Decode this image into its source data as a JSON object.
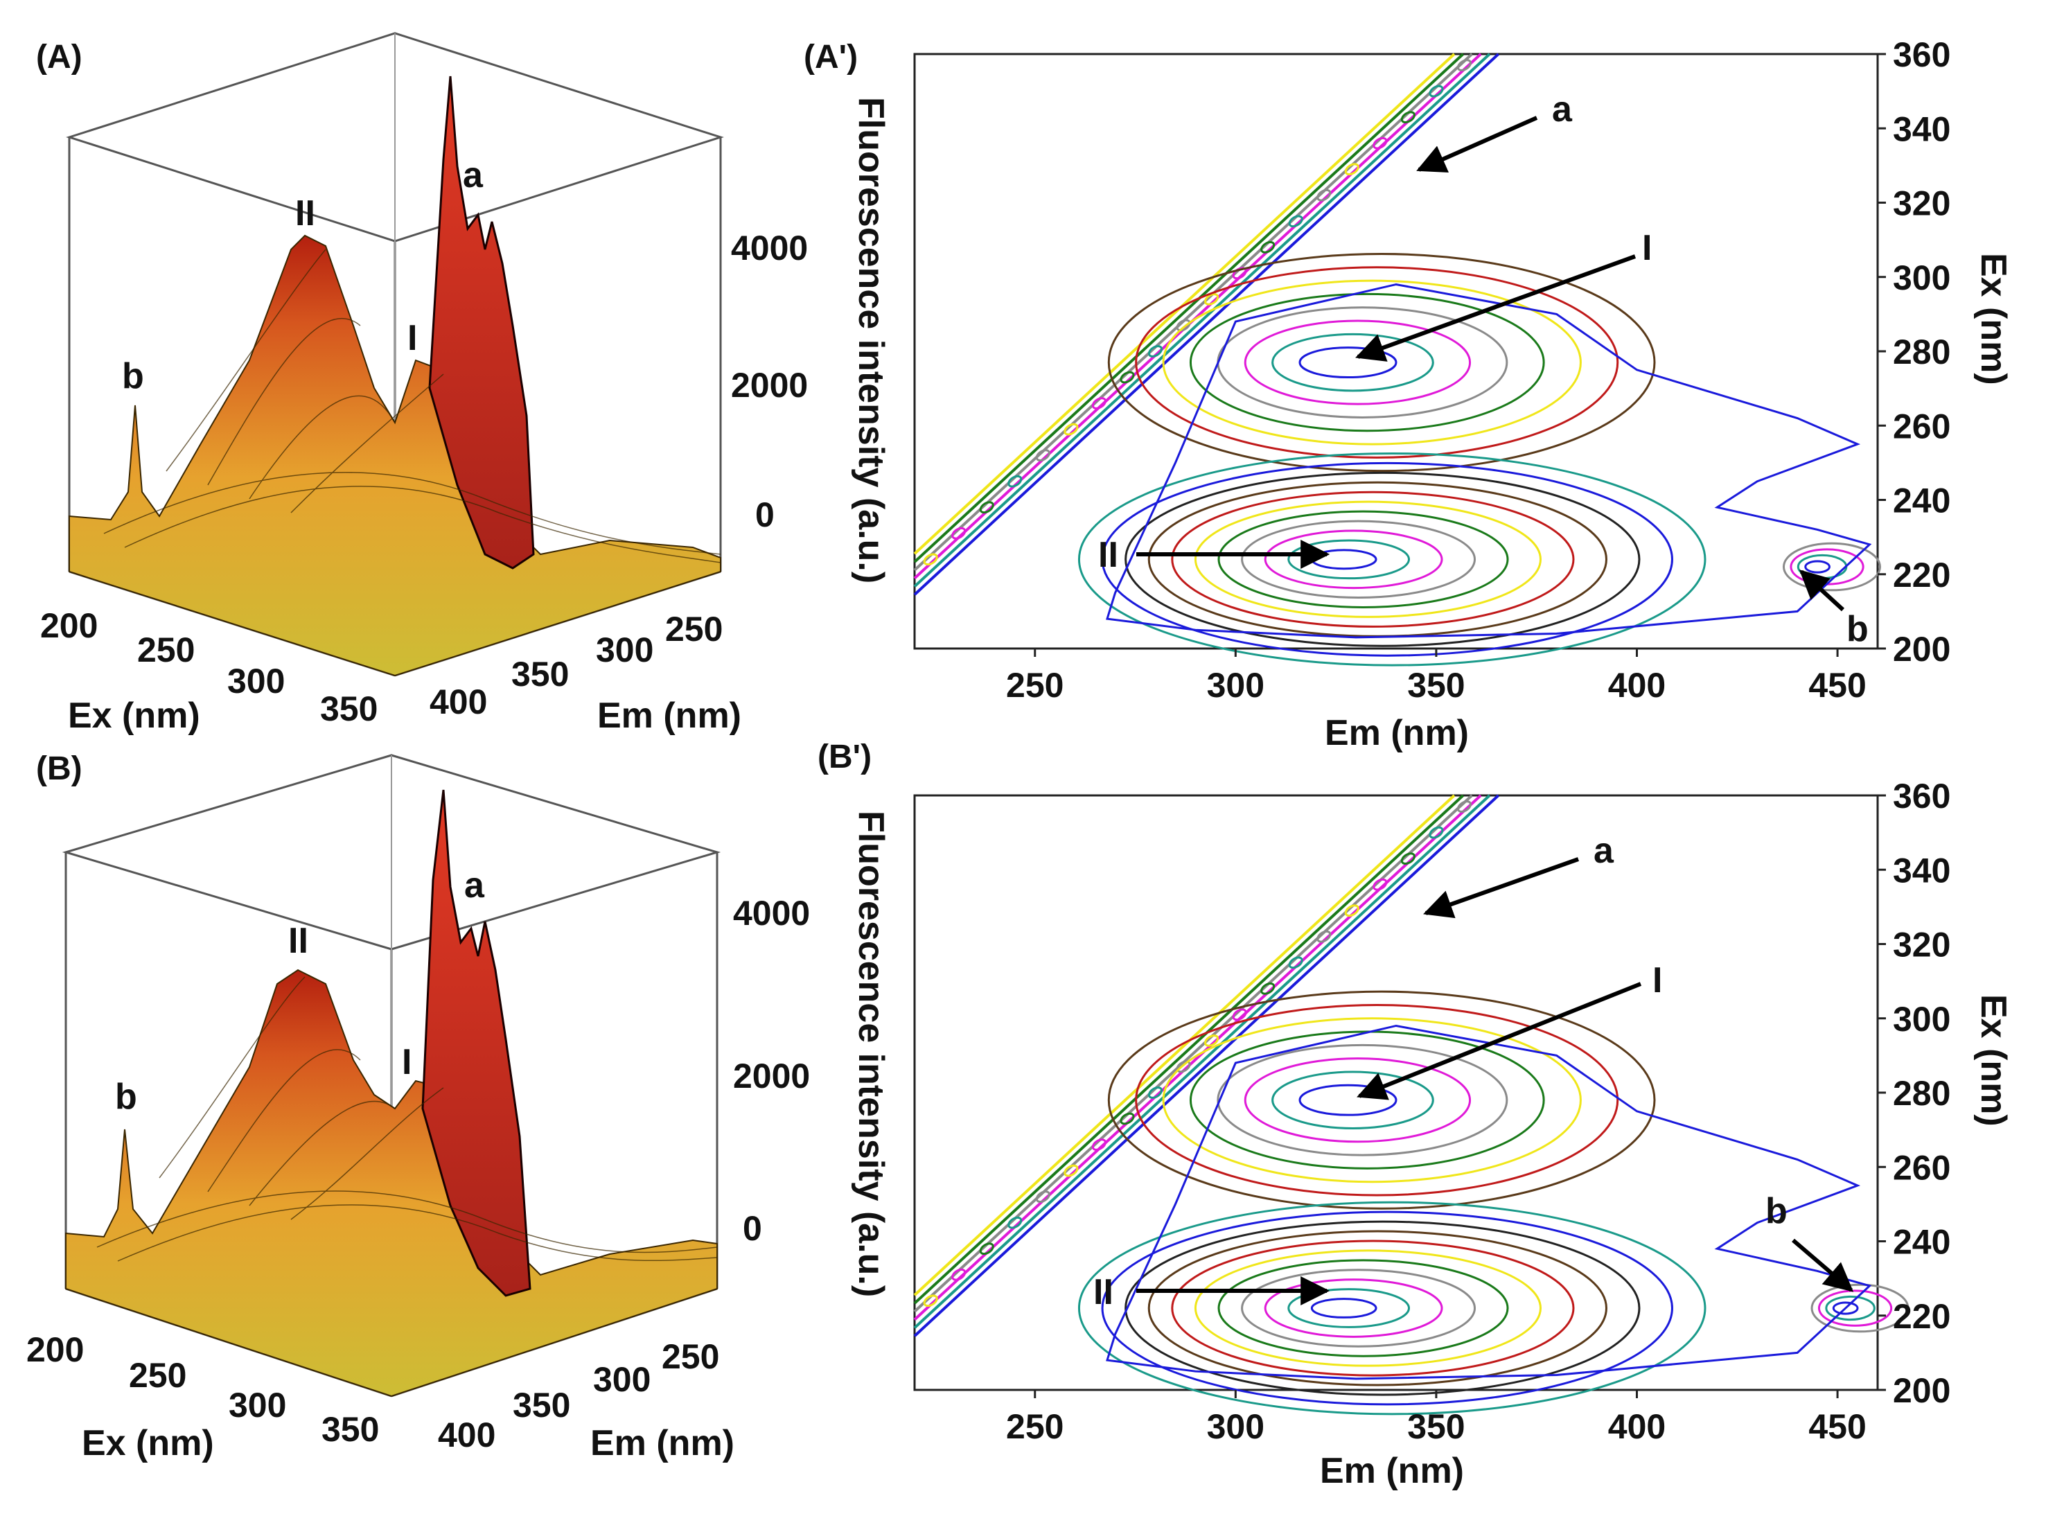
{
  "colors": {
    "surface_low": "#d8c23a",
    "surface_mid": "#e8a02e",
    "surface_high": "#d4521c",
    "surface_peak": "#b01a10",
    "mesh": "#2a1a00",
    "contour_palette": [
      "#1a1adb",
      "#1a9a8a",
      "#e01ad8",
      "#8a8a8a",
      "#1a7a1a",
      "#f0e61a",
      "#c01a1a",
      "#5a3a1a",
      "#222222"
    ]
  },
  "chart_data": [
    {
      "id": "A",
      "type": "surface3d",
      "panel_label": "(A)",
      "xlabel": "Ex (nm)",
      "ylabel": "Em (nm)",
      "zlabel": "Fluorescence intensity (a.u.)",
      "x_ticks": [
        "200",
        "250",
        "300",
        "350"
      ],
      "y_ticks": [
        "400",
        "350",
        "300",
        "250"
      ],
      "z_ticks": [
        "4000",
        "2000",
        "0"
      ],
      "zlim": [
        0,
        6000
      ],
      "peaks": [
        {
          "label": "a",
          "ex": 340,
          "em": 340,
          "intensity": 5600
        },
        {
          "label": "I",
          "ex": 280,
          "em": 325,
          "intensity": 2100
        },
        {
          "label": "II",
          "ex": 225,
          "em": 325,
          "intensity": 3900
        },
        {
          "label": "b",
          "ex": 225,
          "em": 450,
          "intensity": 1600
        }
      ]
    },
    {
      "id": "A'",
      "type": "contour",
      "panel_label": "(A')",
      "xlabel": "Em (nm)",
      "ylabel": "Ex (nm)",
      "xlim": [
        220,
        460
      ],
      "ylim": [
        200,
        360
      ],
      "x_ticks": [
        "250",
        "300",
        "350",
        "400",
        "450"
      ],
      "y_ticks": [
        "200",
        "220",
        "240",
        "260",
        "280",
        "300",
        "320",
        "340",
        "360"
      ],
      "peaks": [
        {
          "label": "a",
          "em": 340,
          "ex": 340
        },
        {
          "label": "I",
          "em": 328,
          "ex": 277
        },
        {
          "label": "II",
          "em": 327,
          "ex": 224
        },
        {
          "label": "b",
          "em": 445,
          "ex": 222
        }
      ]
    },
    {
      "id": "B",
      "type": "surface3d",
      "panel_label": "(B)",
      "xlabel": "Ex (nm)",
      "ylabel": "Em (nm)",
      "zlabel": "Fluorescence intensity (a.u.)",
      "x_ticks": [
        "200",
        "250",
        "300",
        "350"
      ],
      "y_ticks": [
        "400",
        "350",
        "300",
        "250"
      ],
      "z_ticks": [
        "4000",
        "2000",
        "0"
      ],
      "zlim": [
        0,
        6000
      ],
      "peaks": [
        {
          "label": "a",
          "ex": 340,
          "em": 340,
          "intensity": 5500
        },
        {
          "label": "I",
          "ex": 280,
          "em": 325,
          "intensity": 2000
        },
        {
          "label": "II",
          "ex": 225,
          "em": 325,
          "intensity": 3700
        },
        {
          "label": "b",
          "ex": 225,
          "em": 450,
          "intensity": 1500
        }
      ]
    },
    {
      "id": "B'",
      "type": "contour",
      "panel_label": "(B')",
      "xlabel": "Em (nm)",
      "ylabel": "Ex (nm)",
      "xlim": [
        220,
        460
      ],
      "ylim": [
        200,
        360
      ],
      "x_ticks": [
        "250",
        "300",
        "350",
        "400",
        "450"
      ],
      "y_ticks": [
        "200",
        "220",
        "240",
        "260",
        "280",
        "300",
        "320",
        "340",
        "360"
      ],
      "peaks": [
        {
          "label": "a",
          "em": 340,
          "ex": 340
        },
        {
          "label": "I",
          "em": 328,
          "ex": 278
        },
        {
          "label": "II",
          "em": 327,
          "ex": 222
        },
        {
          "label": "b",
          "em": 452,
          "ex": 222
        }
      ]
    }
  ]
}
